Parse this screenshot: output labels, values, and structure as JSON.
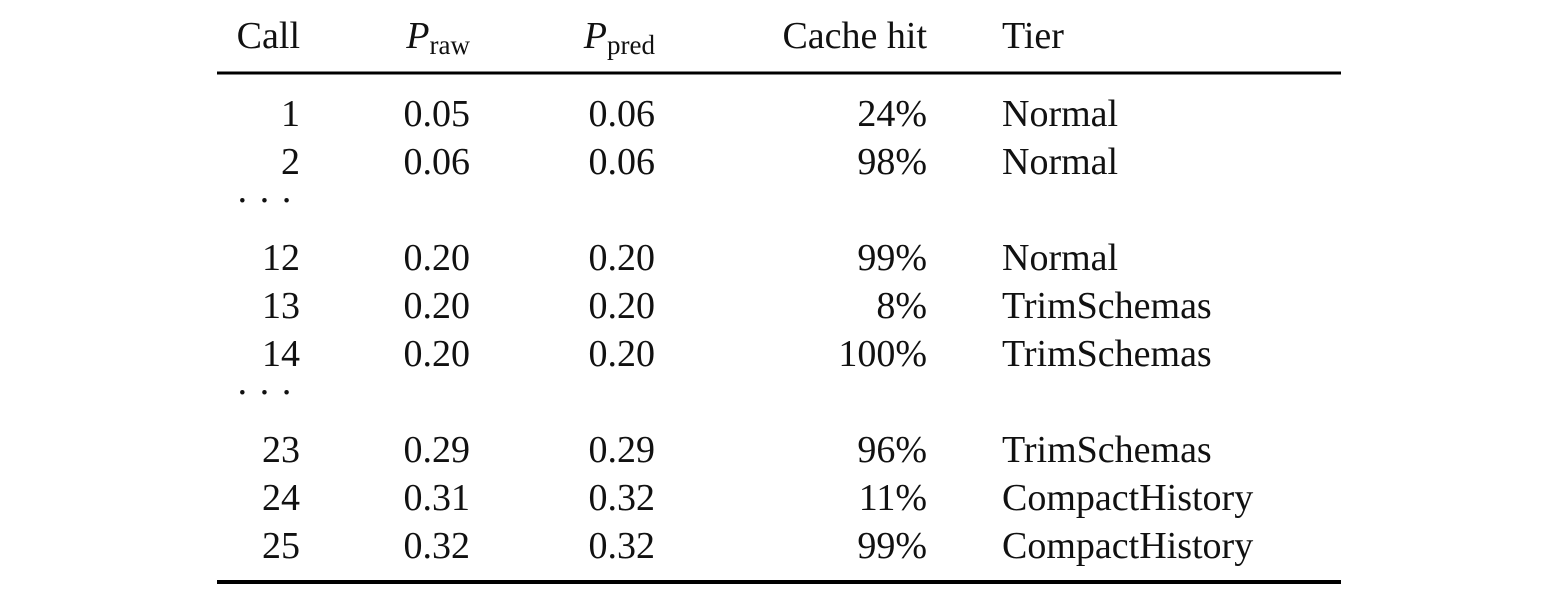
{
  "table": {
    "header": [
      "Call",
      {
        "main": "P",
        "sub": "raw"
      },
      {
        "main": "P",
        "sub": "pred"
      },
      "Cache hit",
      "Tier"
    ],
    "rows": [
      [
        "1",
        "0.05",
        "0.06",
        "24%",
        "Normal"
      ],
      [
        "2",
        "0.06",
        "0.06",
        "98%",
        "Normal"
      ],
      [
        "· · ·"
      ],
      [
        "12",
        "0.20",
        "0.20",
        "99%",
        "Normal"
      ],
      [
        "13",
        "0.20",
        "0.20",
        "8%",
        "TrimSchemas"
      ],
      [
        "14",
        "0.20",
        "0.20",
        "100%",
        "TrimSchemas"
      ],
      [
        "· · ·"
      ],
      [
        "23",
        "0.29",
        "0.29",
        "96%",
        "TrimSchemas"
      ],
      [
        "24",
        "0.31",
        "0.32",
        "11%",
        "CompactHistory"
      ],
      [
        "25",
        "0.32",
        "0.32",
        "99%",
        "CompactHistory"
      ]
    ]
  }
}
